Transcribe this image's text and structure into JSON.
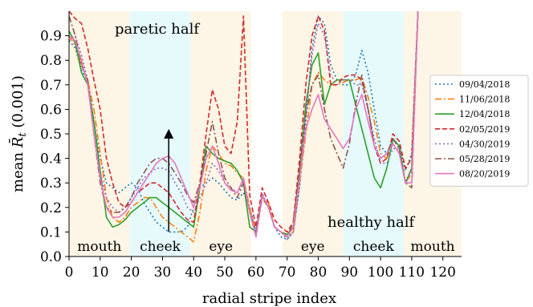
{
  "chart_data": {
    "type": "line",
    "title": "",
    "xlabel": "radial stripe index",
    "ylabel_prefix": "mean ",
    "ylabel_symbol": "R̄",
    "ylabel_subscript": "t",
    "ylabel_suffix": " (0.001)",
    "xlim": [
      0,
      126
    ],
    "ylim": [
      0,
      1.0
    ],
    "xticks": [
      0,
      10,
      20,
      30,
      40,
      50,
      60,
      70,
      80,
      90,
      100,
      110,
      120
    ],
    "yticks": [
      0.0,
      0.1,
      0.2,
      0.3,
      0.4,
      0.5,
      0.6,
      0.7,
      0.8,
      0.9
    ],
    "ytick_labels": [
      "0.0",
      "0.1",
      "0.2",
      "0.3",
      "0.4",
      "0.5",
      "0.6",
      "0.7",
      "0.8",
      "0.9"
    ],
    "grid": false,
    "legend_position": "right",
    "regions": [
      {
        "label": "mouth",
        "x0": 0,
        "x1": 19.5,
        "color": "#fdf5e6"
      },
      {
        "label": "cheek",
        "x0": 19.5,
        "x1": 39,
        "color": "#e6fafc"
      },
      {
        "label": "eye",
        "x0": 39,
        "x1": 58.5,
        "color": "#fdf5e6"
      },
      {
        "label": "eye",
        "x0": 68.5,
        "x1": 88,
        "color": "#fdf5e6"
      },
      {
        "label": "cheek",
        "x0": 88,
        "x1": 107.5,
        "color": "#e6fafc"
      },
      {
        "label": "mouth",
        "x0": 107.5,
        "x1": 126,
        "color": "#fdf5e6"
      }
    ],
    "annotations": {
      "paretic_label": "paretic half",
      "healthy_label": "healthy half",
      "arrow": {
        "x": 32,
        "y_from": 0.1,
        "y_to": 0.52
      }
    },
    "series": [
      {
        "name": "09/04/2018",
        "color": "#1f77b4",
        "dash": "2,3",
        "x": [
          0,
          2,
          4,
          6,
          8,
          10,
          12,
          14,
          16,
          18,
          20,
          22,
          24,
          26,
          28,
          30,
          32,
          34,
          36,
          38,
          40,
          42,
          44,
          46,
          48,
          50,
          52,
          54,
          56,
          58,
          60,
          62,
          64,
          66,
          68,
          70,
          72,
          74,
          76,
          78,
          80,
          82,
          84,
          86,
          88,
          90,
          92,
          94,
          96,
          98,
          100,
          102,
          104,
          106,
          108,
          110,
          112
        ],
        "y": [
          0.88,
          0.85,
          0.76,
          0.72,
          0.55,
          0.4,
          0.3,
          0.28,
          0.26,
          0.28,
          0.3,
          0.28,
          0.22,
          0.18,
          0.14,
          0.12,
          0.1,
          0.1,
          0.1,
          0.12,
          0.2,
          0.28,
          0.3,
          0.32,
          0.3,
          0.27,
          0.24,
          0.23,
          0.26,
          0.2,
          0.1,
          0.25,
          0.2,
          0.12,
          0.08,
          0.07,
          0.1,
          0.28,
          0.55,
          0.85,
          0.98,
          0.95,
          0.78,
          0.72,
          0.7,
          0.7,
          0.74,
          0.84,
          0.75,
          0.6,
          0.45,
          0.42,
          0.48,
          0.45,
          0.35,
          0.42,
          1.0
        ]
      },
      {
        "name": "11/06/2018",
        "color": "#ff7f0e",
        "dash": "8,3,2,3",
        "x": [
          0,
          2,
          4,
          6,
          8,
          10,
          12,
          14,
          16,
          18,
          20,
          22,
          24,
          26,
          28,
          30,
          32,
          34,
          36,
          38,
          40,
          42,
          44,
          46,
          48,
          50,
          52,
          54,
          56,
          58,
          60,
          62,
          64,
          66,
          68,
          70,
          72,
          74,
          76,
          78,
          80,
          82,
          84,
          86,
          88,
          90,
          92,
          94,
          96,
          98,
          100,
          102,
          104,
          106,
          108,
          110,
          112
        ],
        "y": [
          0.9,
          0.86,
          0.78,
          0.72,
          0.6,
          0.42,
          0.24,
          0.16,
          0.14,
          0.16,
          0.2,
          0.22,
          0.24,
          0.24,
          0.2,
          0.16,
          0.14,
          0.12,
          0.1,
          0.08,
          0.06,
          0.18,
          0.35,
          0.45,
          0.42,
          0.38,
          0.37,
          0.34,
          0.32,
          0.2,
          0.1,
          0.24,
          0.22,
          0.12,
          0.1,
          0.08,
          0.1,
          0.3,
          0.5,
          0.7,
          0.75,
          0.72,
          0.7,
          0.7,
          0.71,
          0.72,
          0.72,
          0.73,
          0.65,
          0.55,
          0.42,
          0.4,
          0.46,
          0.42,
          0.3,
          0.34,
          1.0
        ]
      },
      {
        "name": "12/04/2018",
        "color": "#2ca02c",
        "dash": "",
        "x": [
          0,
          2,
          4,
          6,
          8,
          10,
          12,
          14,
          16,
          18,
          20,
          22,
          24,
          26,
          28,
          30,
          32,
          34,
          36,
          38,
          40,
          42,
          44,
          46,
          48,
          50,
          52,
          54,
          56,
          58,
          60,
          62,
          64,
          66,
          68,
          70,
          72,
          74,
          76,
          78,
          80,
          82,
          84,
          86,
          88,
          90,
          92,
          94,
          96,
          98,
          100,
          102,
          104,
          106,
          108,
          110,
          112
        ],
        "y": [
          0.92,
          0.87,
          0.75,
          0.7,
          0.55,
          0.35,
          0.16,
          0.12,
          0.13,
          0.15,
          0.18,
          0.2,
          0.22,
          0.24,
          0.24,
          0.22,
          0.2,
          0.18,
          0.16,
          0.14,
          0.12,
          0.28,
          0.45,
          0.42,
          0.4,
          0.39,
          0.38,
          0.35,
          0.3,
          0.12,
          0.1,
          0.25,
          0.2,
          0.12,
          0.1,
          0.09,
          0.12,
          0.35,
          0.62,
          0.78,
          0.83,
          0.62,
          0.7,
          0.72,
          0.72,
          0.72,
          0.62,
          0.52,
          0.42,
          0.32,
          0.28,
          0.36,
          0.48,
          0.45,
          0.3,
          0.36,
          1.0
        ]
      },
      {
        "name": "02/05/2019",
        "color": "#d62728",
        "dash": "6,3",
        "x": [
          0,
          2,
          4,
          6,
          8,
          10,
          12,
          14,
          16,
          18,
          20,
          22,
          24,
          26,
          28,
          30,
          32,
          34,
          36,
          38,
          40,
          42,
          44,
          46,
          48,
          50,
          52,
          54,
          56,
          58,
          60,
          62,
          64,
          66,
          68,
          70,
          72,
          74,
          76,
          78,
          80,
          82,
          84,
          86,
          88,
          90,
          92,
          94,
          96,
          98,
          100,
          102,
          104,
          106,
          108,
          110,
          112
        ],
        "y": [
          1.0,
          0.97,
          0.95,
          0.85,
          0.72,
          0.6,
          0.4,
          0.3,
          0.22,
          0.2,
          0.22,
          0.26,
          0.28,
          0.3,
          0.3,
          0.28,
          0.26,
          0.22,
          0.18,
          0.15,
          0.14,
          0.3,
          0.5,
          0.68,
          0.6,
          0.45,
          0.42,
          0.55,
          0.98,
          0.25,
          0.12,
          0.28,
          0.22,
          0.15,
          0.12,
          0.1,
          0.14,
          0.4,
          0.7,
          0.9,
          0.98,
          0.92,
          0.7,
          0.7,
          0.73,
          0.74,
          0.74,
          0.72,
          0.6,
          0.45,
          0.38,
          0.4,
          0.5,
          0.47,
          0.36,
          0.4,
          1.0
        ]
      },
      {
        "name": "04/30/2019",
        "color": "#9467bd",
        "dash": "2,3",
        "x": [
          0,
          2,
          4,
          6,
          8,
          10,
          12,
          14,
          16,
          18,
          20,
          22,
          24,
          26,
          28,
          30,
          32,
          34,
          36,
          38,
          40,
          42,
          44,
          46,
          48,
          50,
          52,
          54,
          56,
          58,
          60,
          62,
          64,
          66,
          68,
          70,
          72,
          74,
          76,
          78,
          80,
          82,
          84,
          86,
          88,
          90,
          92,
          94,
          96,
          98,
          100,
          102,
          104,
          106,
          108,
          110,
          112
        ],
        "y": [
          0.88,
          0.9,
          0.82,
          0.72,
          0.5,
          0.34,
          0.24,
          0.2,
          0.18,
          0.2,
          0.24,
          0.28,
          0.32,
          0.34,
          0.36,
          0.36,
          0.35,
          0.3,
          0.26,
          0.2,
          0.18,
          0.24,
          0.3,
          0.38,
          0.35,
          0.3,
          0.28,
          0.26,
          0.3,
          0.18,
          0.1,
          0.26,
          0.2,
          0.12,
          0.1,
          0.07,
          0.1,
          0.3,
          0.58,
          0.82,
          0.95,
          0.9,
          0.74,
          0.7,
          0.72,
          0.72,
          0.7,
          0.7,
          0.6,
          0.48,
          0.38,
          0.38,
          0.44,
          0.44,
          0.3,
          0.35,
          1.0
        ]
      },
      {
        "name": "05/28/2019",
        "color": "#8c564b",
        "dash": "8,3,2,3",
        "x": [
          0,
          2,
          4,
          6,
          8,
          10,
          12,
          14,
          16,
          18,
          20,
          22,
          24,
          26,
          28,
          30,
          32,
          34,
          36,
          38,
          40,
          42,
          44,
          46,
          48,
          50,
          52,
          54,
          56,
          58,
          60,
          62,
          64,
          66,
          68,
          70,
          72,
          74,
          76,
          78,
          80,
          82,
          84,
          86,
          88,
          90,
          92,
          94,
          96,
          98,
          100,
          102,
          104,
          106,
          108,
          110,
          112
        ],
        "y": [
          0.98,
          0.9,
          0.78,
          0.72,
          0.5,
          0.3,
          0.2,
          0.18,
          0.18,
          0.2,
          0.24,
          0.3,
          0.34,
          0.38,
          0.4,
          0.4,
          0.38,
          0.34,
          0.3,
          0.25,
          0.22,
          0.3,
          0.42,
          0.55,
          0.42,
          0.32,
          0.28,
          0.24,
          0.3,
          0.18,
          0.08,
          0.24,
          0.2,
          0.12,
          0.1,
          0.08,
          0.14,
          0.36,
          0.58,
          0.7,
          0.74,
          0.6,
          0.48,
          0.42,
          0.36,
          0.46,
          0.62,
          0.74,
          0.6,
          0.45,
          0.4,
          0.42,
          0.48,
          0.44,
          0.3,
          0.28,
          1.0
        ]
      },
      {
        "name": "08/20/2019",
        "color": "#e377c2",
        "dash": "",
        "x": [
          0,
          2,
          4,
          6,
          8,
          10,
          12,
          14,
          16,
          18,
          20,
          22,
          24,
          26,
          28,
          30,
          32,
          34,
          36,
          38,
          40,
          42,
          44,
          46,
          48,
          50,
          52,
          54,
          56,
          58,
          60,
          62,
          64,
          66,
          68,
          70,
          72,
          74,
          76,
          78,
          80,
          82,
          84,
          86,
          88,
          90,
          92,
          94,
          96,
          98,
          100,
          102,
          104,
          106,
          108,
          110,
          112
        ],
        "y": [
          0.9,
          0.88,
          0.8,
          0.7,
          0.5,
          0.32,
          0.2,
          0.16,
          0.16,
          0.18,
          0.22,
          0.26,
          0.3,
          0.34,
          0.38,
          0.4,
          0.41,
          0.38,
          0.32,
          0.26,
          0.2,
          0.28,
          0.4,
          0.45,
          0.38,
          0.3,
          0.27,
          0.26,
          0.32,
          0.18,
          0.08,
          0.25,
          0.2,
          0.12,
          0.1,
          0.08,
          0.12,
          0.32,
          0.52,
          0.6,
          0.66,
          0.56,
          0.52,
          0.48,
          0.44,
          0.48,
          0.6,
          0.66,
          0.55,
          0.45,
          0.4,
          0.42,
          0.46,
          0.42,
          0.3,
          0.3,
          1.0
        ]
      }
    ]
  }
}
